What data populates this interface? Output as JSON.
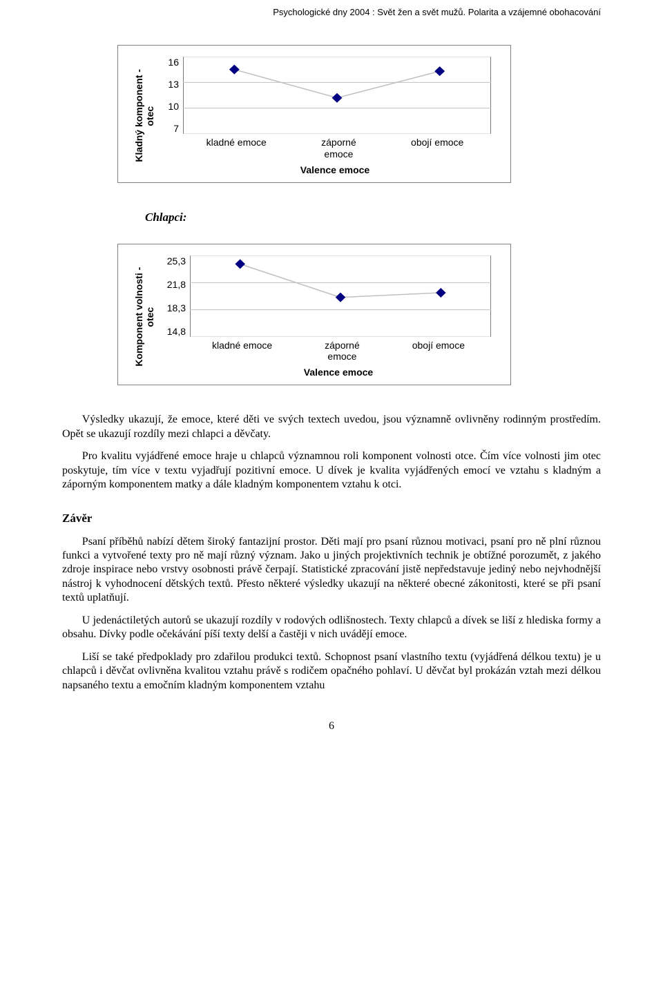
{
  "header": {
    "text": "Psychologické dny 2004 : Svět žen a svět mužů. Polarita a vzájemné obohacování"
  },
  "chart1": {
    "type": "line-with-markers",
    "ylabel": "Kladný komponent -\notec",
    "xlabel": "Valence emoce",
    "ylabel_fontweight": "bold",
    "xlabel_fontweight": "bold",
    "label_fontfamily": "Arial",
    "label_fontsize": 14,
    "yticks": [
      "16",
      "13",
      "10",
      "7"
    ],
    "ylim": [
      7,
      16
    ],
    "xticks": [
      "kladné emoce",
      "záporné\nemoce",
      "obojí emoce"
    ],
    "values": [
      14.5,
      11.2,
      14.3
    ],
    "plot_area_bg": "#ffffff",
    "plot_border_color": "#000000",
    "gridline_color": "#c0c0c0",
    "line_color": "#c0c0c0",
    "marker_color": "#000080",
    "marker_shape": "diamond",
    "marker_size": 7,
    "outer_border_color": "#808080"
  },
  "chlapci_label": "Chlapci:",
  "chart2": {
    "type": "line-with-markers",
    "ylabel": "Komponent volnosti -\notec",
    "xlabel": "Valence emoce",
    "ylabel_fontweight": "bold",
    "xlabel_fontweight": "bold",
    "label_fontfamily": "Arial",
    "label_fontsize": 14,
    "yticks": [
      "25,3",
      "21,8",
      "18,3",
      "14,8"
    ],
    "ylim": [
      14.8,
      25.3
    ],
    "xticks": [
      "kladné emoce",
      "záporné\nemoce",
      "obojí emoce"
    ],
    "values": [
      24.2,
      19.9,
      20.5
    ],
    "plot_area_bg": "#ffffff",
    "plot_border_color": "#000000",
    "gridline_color": "#c0c0c0",
    "line_color": "#c0c0c0",
    "marker_color": "#000080",
    "marker_shape": "diamond",
    "marker_size": 7,
    "outer_border_color": "#808080"
  },
  "paragraphs": {
    "p1": "Výsledky ukazují, že emoce, které děti ve svých textech uvedou, jsou významně ovlivněny rodinným prostředím. Opět se ukazují rozdíly mezi chlapci a děvčaty.",
    "p2": "Pro kvalitu vyjádřené emoce hraje u chlapců významnou roli komponent volnosti otce. Čím více volnosti jim otec poskytuje, tím více v textu vyjadřují pozitivní emoce. U dívek je kvalita vyjádřených emocí ve vztahu s kladným a záporným komponentem matky a dále kladným komponentem vztahu k otci.",
    "zaver_heading": "Závěr",
    "p3": "Psaní příběhů nabízí dětem široký fantazijní prostor. Děti mají pro psaní různou motivaci, psaní pro ně plní různou funkci a vytvořené texty pro ně mají různý význam. Jako u jiných projektivních technik je obtížné porozumět, z jakého zdroje inspirace nebo vrstvy osobnosti právě čerpají. Statistické zpracování jistě nepředstavuje jediný nebo nejvhodnější nástroj k vyhodnocení dětských textů. Přesto některé výsledky ukazují na některé obecné zákonitosti, které se při psaní textů uplatňují.",
    "p4": "U jedenáctiletých autorů se ukazují rozdíly v rodových odlišnostech. Texty chlapců a dívek se liší z hlediska formy a obsahu. Dívky podle očekávání píší texty delší a častěji v nich uvádějí emoce.",
    "p5": "Liší se také předpoklady pro zdařilou produkci textů. Schopnost psaní vlastního textu (vyjádřená délkou textu) je u chlapců i děvčat ovlivněna kvalitou vztahu právě s rodičem opačného pohlaví. U děvčat byl prokázán vztah mezi délkou napsaného textu a emočním kladným komponentem vztahu"
  },
  "page_number": "6"
}
